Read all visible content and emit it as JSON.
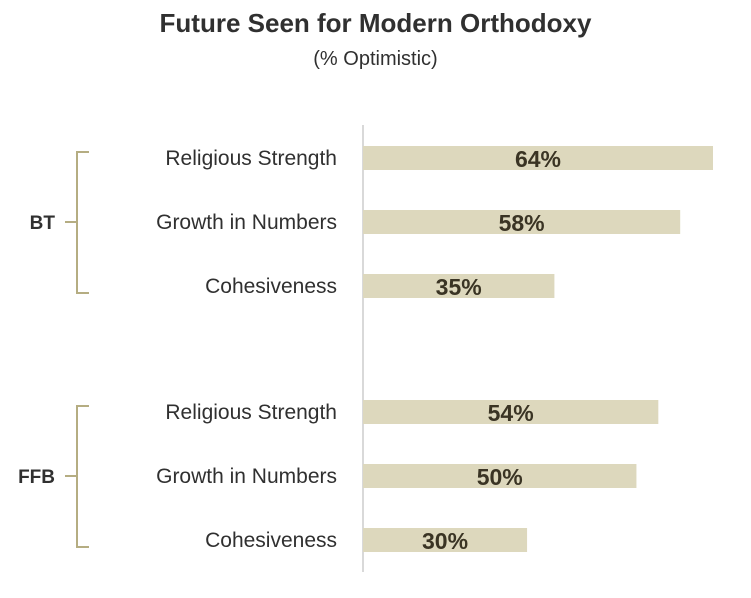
{
  "chart_data": {
    "type": "bar",
    "orientation": "horizontal",
    "title": "Future Seen for Modern Orthodoxy",
    "subtitle": "(% Optimistic)",
    "xlim": [
      0,
      64
    ],
    "value_suffix": "%",
    "groups": [
      {
        "name": "BT",
        "categories": [
          "Religious Strength",
          "Growth in Numbers",
          "Cohesiveness"
        ],
        "values": [
          64,
          58,
          35
        ]
      },
      {
        "name": "FFB",
        "categories": [
          "Religious Strength",
          "Growth in Numbers",
          "Cohesiveness"
        ],
        "values": [
          54,
          50,
          30
        ]
      }
    ],
    "colors": {
      "bar": "#ddd8bd",
      "bracket": "#b5ad82",
      "axis": "#d9d9d9",
      "value_text": "#3a3424",
      "label_text": "#303030"
    }
  }
}
